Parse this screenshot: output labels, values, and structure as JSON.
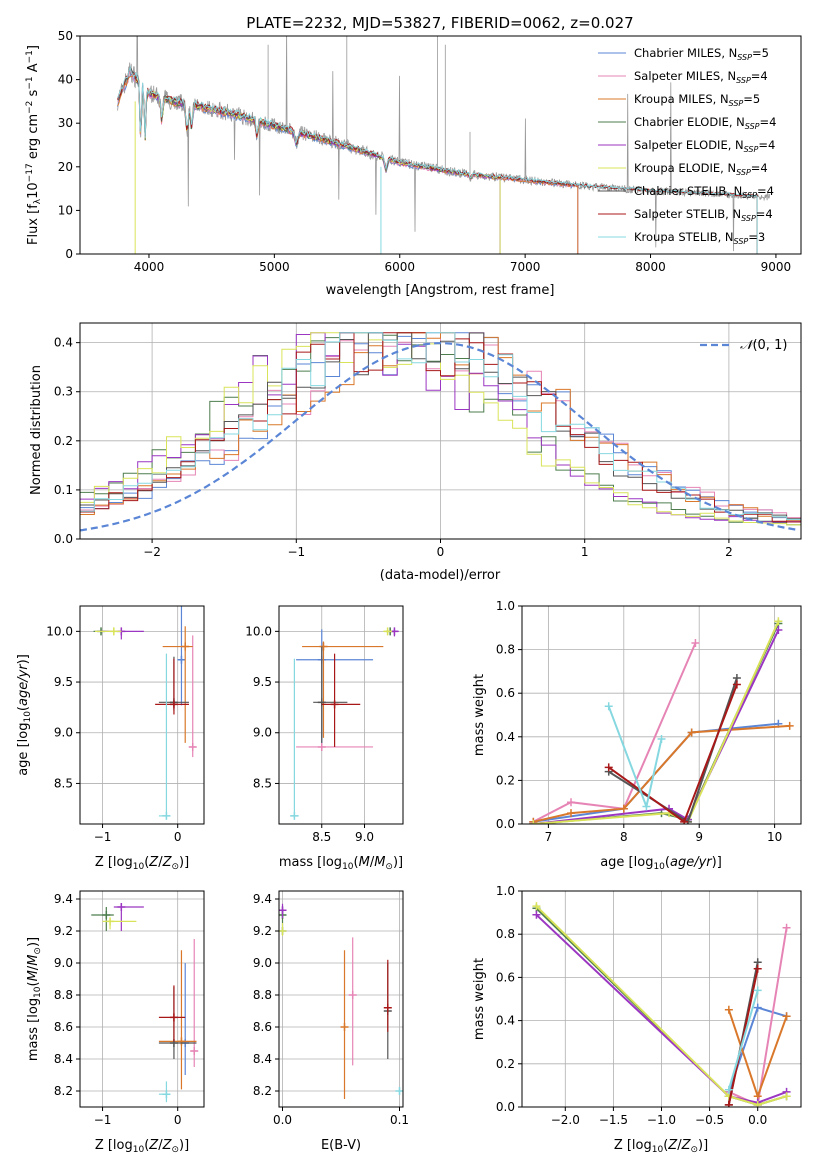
{
  "title": "PLATE=2232, MJD=53827, FIBERID=0062, z=0.027",
  "colors": {
    "Chabrier MILES": "#5b86d6",
    "Salpeter MILES": "#e685b5",
    "Kroupa MILES": "#d9782a",
    "Chabrier ELODIE": "#4d7d4d",
    "Salpeter ELODIE": "#9b36c2",
    "Kroupa ELODIE": "#d9e35a",
    "Chabrier STELIB": "#555555",
    "Salpeter STELIB": "#a81818",
    "Kroupa STELIB": "#86d8e0",
    "data": "#999999",
    "normal": "#5b86d6"
  },
  "legend": [
    {
      "name": "Chabrier MILES",
      "nssp": "5"
    },
    {
      "name": "Salpeter MILES",
      "nssp": "4"
    },
    {
      "name": "Kroupa MILES",
      "nssp": "5"
    },
    {
      "name": "Chabrier ELODIE",
      "nssp": "4"
    },
    {
      "name": "Salpeter ELODIE",
      "nssp": "4"
    },
    {
      "name": "Kroupa ELODIE",
      "nssp": "4"
    },
    {
      "name": "Chabrier STELIB",
      "nssp": "4"
    },
    {
      "name": "Salpeter STELIB",
      "nssp": "4"
    },
    {
      "name": "Kroupa STELIB",
      "nssp": "3"
    }
  ],
  "chart_data": [
    {
      "id": "spectrum",
      "type": "line",
      "xlabel": "wavelength [Angstrom, rest frame]",
      "ylabel": "Flux [fλ10⁻¹⁷ erg cm⁻² s⁻¹ A⁻¹]",
      "xlim": [
        3450,
        9200
      ],
      "ylim": [
        0,
        50
      ],
      "xticks": [
        4000,
        5000,
        6000,
        7000,
        8000,
        9000
      ],
      "yticks": [
        0,
        10,
        20,
        30,
        40,
        50
      ],
      "continuum": {
        "x": [
          3750,
          3850,
          4000,
          4200,
          4400,
          4700,
          5000,
          5500,
          6000,
          6500,
          7000,
          7500,
          8000,
          8500,
          9000
        ],
        "y": [
          35,
          42,
          37,
          35,
          34,
          32,
          29.5,
          25.5,
          21,
          18.5,
          17,
          15.5,
          14.5,
          13.8,
          13
        ]
      },
      "model_ranges": {
        "Chabrier MILES": [
          3750,
          7420
        ],
        "Salpeter MILES": [
          3750,
          7420
        ],
        "Kroupa MILES": [
          3750,
          7420
        ],
        "Chabrier ELODIE": [
          3890,
          6800
        ],
        "Salpeter ELODIE": [
          3890,
          6800
        ],
        "Kroupa ELODIE": [
          3890,
          6800
        ],
        "Chabrier STELIB": [
          3750,
          8850
        ],
        "Salpeter STELIB": [
          3750,
          8850
        ],
        "Kroupa STELIB": [
          3750,
          8850
        ]
      }
    },
    {
      "id": "residual-distribution",
      "type": "line",
      "xlabel": "(data-model)/error",
      "ylabel": "Normed distribution",
      "xlim": [
        -2.5,
        2.5
      ],
      "ylim": [
        0,
        0.44
      ],
      "xticks": [
        -2,
        -1,
        0,
        1,
        2
      ],
      "yticks": [
        0.0,
        0.1,
        0.2,
        0.3,
        0.4
      ],
      "normal_label": "𝒩(0, 1)",
      "normal_legend_text": "(0, 1)",
      "normal_legend_symbol": "𝒩"
    },
    {
      "id": "age-vs-Z",
      "type": "scatter",
      "xlabel": "Z [log10(Z/Z⊙)]",
      "ylabel": "age  [log10(age/yr)]",
      "xlim": [
        -1.3,
        0.35
      ],
      "ylim": [
        8.1,
        10.25
      ],
      "xticks": [
        -1,
        0
      ],
      "yticks": [
        8.5,
        9.0,
        9.5,
        10.0
      ],
      "points": [
        {
          "s": "Chabrier MILES",
          "x": 0.05,
          "y": 9.72,
          "xe": [
            0.05,
            0.05
          ],
          "ye": [
            0.45,
            0.55
          ]
        },
        {
          "s": "Salpeter MILES",
          "x": 0.2,
          "y": 8.86,
          "xe": [
            0.05,
            0.05
          ],
          "ye": [
            0.1,
            1.1
          ]
        },
        {
          "s": "Kroupa MILES",
          "x": 0.1,
          "y": 9.85,
          "xe": [
            0.3,
            0.1
          ],
          "ye": [
            0.95,
            0.2
          ]
        },
        {
          "s": "Chabrier ELODIE",
          "x": -1.02,
          "y": 10.0,
          "xe": [
            0.1,
            0.1
          ],
          "ye": [
            0.02,
            0.02
          ]
        },
        {
          "s": "Salpeter ELODIE",
          "x": -0.75,
          "y": 10.0,
          "xe": [
            0.3,
            0.3
          ],
          "ye": [
            0.08,
            0.02
          ]
        },
        {
          "s": "Kroupa ELODIE",
          "x": -0.85,
          "y": 10.0,
          "xe": [
            0.25,
            0.1
          ],
          "ye": [
            0.02,
            0.02
          ]
        },
        {
          "s": "Chabrier STELIB",
          "x": -0.05,
          "y": 9.3,
          "xe": [
            0.2,
            0.2
          ],
          "ye": [
            0.08,
            0.45
          ]
        },
        {
          "s": "Salpeter STELIB",
          "x": -0.05,
          "y": 9.28,
          "xe": [
            0.25,
            0.2
          ],
          "ye": [
            0.1,
            0.45
          ]
        },
        {
          "s": "Kroupa STELIB",
          "x": -0.15,
          "y": 8.18,
          "xe": [
            0.1,
            0.05
          ],
          "ye": [
            0.02,
            1.6
          ]
        }
      ]
    },
    {
      "id": "age-vs-mass",
      "type": "scatter",
      "xlabel": "mass [log10(M/M⊙)]",
      "ylabel": "",
      "xlim": [
        8.0,
        9.45
      ],
      "ylim": [
        8.1,
        10.25
      ],
      "xticks": [
        8.5,
        9.0
      ],
      "yticks": [
        8.5,
        9.0,
        9.5,
        10.0
      ],
      "points": [
        {
          "s": "Chabrier MILES",
          "x": 8.5,
          "y": 9.72,
          "xe": [
            0.3,
            0.6
          ],
          "ye": [
            0.9,
            0.3
          ]
        },
        {
          "s": "Salpeter MILES",
          "x": 8.5,
          "y": 8.86,
          "xe": [
            0.3,
            0.6
          ],
          "ye": [
            0.02,
            0.02
          ]
        },
        {
          "s": "Kroupa MILES",
          "x": 8.52,
          "y": 9.85,
          "xe": [
            0.25,
            0.7
          ],
          "ye": [
            0.9,
            0.05
          ]
        },
        {
          "s": "Chabrier ELODIE",
          "x": 9.3,
          "y": 10.0,
          "xe": [
            0.05,
            0.05
          ],
          "ye": [
            0.02,
            0.02
          ]
        },
        {
          "s": "Salpeter ELODIE",
          "x": 9.35,
          "y": 10.0,
          "xe": [
            0.08,
            0.05
          ],
          "ye": [
            0.05,
            0.02
          ]
        },
        {
          "s": "Kroupa ELODIE",
          "x": 9.27,
          "y": 10.0,
          "xe": [
            0.05,
            0.05
          ],
          "ye": [
            0.02,
            0.02
          ]
        },
        {
          "s": "Chabrier STELIB",
          "x": 8.5,
          "y": 9.3,
          "xe": [
            0.1,
            0.3
          ],
          "ye": [
            0.4,
            0.55
          ]
        },
        {
          "s": "Salpeter STELIB",
          "x": 8.65,
          "y": 9.28,
          "xe": [
            0.15,
            0.3
          ],
          "ye": [
            0.42,
            0.5
          ]
        },
        {
          "s": "Kroupa STELIB",
          "x": 8.18,
          "y": 8.18,
          "xe": [
            0.05,
            0.05
          ],
          "ye": [
            0.02,
            1.55
          ]
        }
      ]
    },
    {
      "id": "massweight-vs-age",
      "type": "line",
      "xlabel": "age  [log10(age/yr)]",
      "ylabel": "mass weight",
      "xlim": [
        6.65,
        10.35
      ],
      "ylim": [
        0,
        1.0
      ],
      "xticks": [
        7,
        8,
        9,
        10
      ],
      "yticks": [
        0.0,
        0.2,
        0.4,
        0.6,
        0.8,
        1.0
      ],
      "series": [
        {
          "s": "Chabrier MILES",
          "x": [
            6.8,
            8.0,
            8.9,
            10.05
          ],
          "y": [
            0.01,
            0.07,
            0.42,
            0.46
          ]
        },
        {
          "s": "Salpeter MILES",
          "x": [
            6.8,
            7.3,
            8.0,
            8.95
          ],
          "y": [
            0.01,
            0.1,
            0.07,
            0.83
          ]
        },
        {
          "s": "Kroupa MILES",
          "x": [
            6.8,
            7.3,
            8.0,
            8.9,
            10.2
          ],
          "y": [
            0.01,
            0.05,
            0.07,
            0.42,
            0.45
          ]
        },
        {
          "s": "Chabrier ELODIE",
          "x": [
            6.8,
            8.5,
            8.85,
            10.05
          ],
          "y": [
            0.0,
            0.05,
            0.02,
            0.92
          ]
        },
        {
          "s": "Salpeter ELODIE",
          "x": [
            6.8,
            8.6,
            8.85,
            10.05
          ],
          "y": [
            0.0,
            0.07,
            0.02,
            0.89
          ]
        },
        {
          "s": "Kroupa ELODIE",
          "x": [
            6.8,
            8.6,
            8.85,
            10.05
          ],
          "y": [
            0.0,
            0.05,
            0.01,
            0.93
          ]
        },
        {
          "s": "Chabrier STELIB",
          "x": [
            7.8,
            8.85,
            9.5
          ],
          "y": [
            0.24,
            0.01,
            0.67
          ]
        },
        {
          "s": "Salpeter STELIB",
          "x": [
            7.8,
            8.8,
            9.5
          ],
          "y": [
            0.26,
            0.01,
            0.64
          ]
        },
        {
          "s": "Kroupa STELIB",
          "x": [
            7.8,
            8.3,
            8.5
          ],
          "y": [
            0.54,
            0.08,
            0.39
          ]
        }
      ]
    },
    {
      "id": "mass-vs-Z",
      "type": "scatter",
      "xlabel": "Z [log10(Z/Z⊙)]",
      "ylabel": "mass [log10(M/M⊙)]",
      "xlim": [
        -1.3,
        0.35
      ],
      "ylim": [
        8.1,
        9.45
      ],
      "xticks": [
        -1,
        0
      ],
      "yticks": [
        8.2,
        8.4,
        8.6,
        8.8,
        9.0,
        9.2,
        9.4
      ],
      "points": [
        {
          "s": "Chabrier MILES",
          "x": 0.1,
          "y": 8.5,
          "xe": [
            0.05,
            0.05
          ],
          "ye": [
            0.2,
            0.5
          ]
        },
        {
          "s": "Salpeter MILES",
          "x": 0.22,
          "y": 8.45,
          "xe": [
            0.05,
            0.05
          ],
          "ye": [
            0.1,
            0.7
          ]
        },
        {
          "s": "Kroupa MILES",
          "x": 0.05,
          "y": 8.51,
          "xe": [
            0.3,
            0.2
          ],
          "ye": [
            0.3,
            0.57
          ]
        },
        {
          "s": "Chabrier ELODIE",
          "x": -0.95,
          "y": 9.3,
          "xe": [
            0.2,
            0.1
          ],
          "ye": [
            0.1,
            0.05
          ]
        },
        {
          "s": "Salpeter ELODIE",
          "x": -0.75,
          "y": 9.35,
          "xe": [
            0.1,
            0.3
          ],
          "ye": [
            0.15,
            0.02
          ]
        },
        {
          "s": "Kroupa ELODIE",
          "x": -0.9,
          "y": 9.26,
          "xe": [
            0.1,
            0.35
          ],
          "ye": [
            0.05,
            0.02
          ]
        },
        {
          "s": "Chabrier STELIB",
          "x": -0.05,
          "y": 8.5,
          "xe": [
            0.2,
            0.3
          ],
          "ye": [
            0.1,
            0.35
          ]
        },
        {
          "s": "Salpeter STELIB",
          "x": -0.05,
          "y": 8.66,
          "xe": [
            0.2,
            0.15
          ],
          "ye": [
            0.15,
            0.2
          ]
        },
        {
          "s": "Kroupa STELIB",
          "x": -0.15,
          "y": 8.18,
          "xe": [
            0.1,
            0.05
          ],
          "ye": [
            0.05,
            0.08
          ]
        }
      ]
    },
    {
      "id": "mass-vs-ebv",
      "type": "scatter",
      "xlabel": "E(B-V)",
      "ylabel": "",
      "xlim": [
        -0.003,
        0.103
      ],
      "ylim": [
        8.1,
        9.45
      ],
      "xticks": [
        0.0,
        0.1
      ],
      "yticks": [
        8.2,
        8.4,
        8.6,
        8.8,
        9.0,
        9.2,
        9.4
      ],
      "points": [
        {
          "s": "Chabrier MILES",
          "x": 0.0,
          "y": 9.2,
          "xe": [
            0,
            0
          ],
          "ye": [
            0.02,
            0.05
          ]
        },
        {
          "s": "Salpeter MILES",
          "x": 0.06,
          "y": 8.8,
          "xe": [
            0,
            0
          ],
          "ye": [
            0.44,
            0.36
          ]
        },
        {
          "s": "Kroupa MILES",
          "x": 0.053,
          "y": 8.6,
          "xe": [
            0,
            0
          ],
          "ye": [
            0.45,
            0.48
          ]
        },
        {
          "s": "Chabrier ELODIE",
          "x": 0.0,
          "y": 9.3,
          "xe": [
            0,
            0
          ],
          "ye": [
            0.05,
            0.05
          ]
        },
        {
          "s": "Salpeter ELODIE",
          "x": 0.0,
          "y": 9.33,
          "xe": [
            0,
            0
          ],
          "ye": [
            0.05,
            0.04
          ]
        },
        {
          "s": "Kroupa ELODIE",
          "x": 0.0,
          "y": 9.2,
          "xe": [
            0,
            0
          ],
          "ye": [
            0.03,
            0.05
          ]
        },
        {
          "s": "Chabrier STELIB",
          "x": 0.09,
          "y": 8.7,
          "xe": [
            0,
            0
          ],
          "ye": [
            0.3,
            0.3
          ]
        },
        {
          "s": "Salpeter STELIB",
          "x": 0.09,
          "y": 8.72,
          "xe": [
            0,
            0
          ],
          "ye": [
            0.15,
            0.3
          ]
        },
        {
          "s": "Kroupa STELIB",
          "x": 0.1,
          "y": 8.2,
          "xe": [
            0,
            0
          ],
          "ye": [
            0.02,
            0.02
          ]
        }
      ]
    },
    {
      "id": "massweight-vs-Z",
      "type": "line",
      "xlabel": "Z [log10(Z/Z⊙)]",
      "ylabel": "mass weight",
      "xlim": [
        -2.45,
        0.45
      ],
      "ylim": [
        0,
        1.0
      ],
      "xticks": [
        -2.0,
        -1.5,
        -1.0,
        -0.5,
        0.0
      ],
      "yticks": [
        0.0,
        0.2,
        0.4,
        0.6,
        0.8,
        1.0
      ],
      "series": [
        {
          "s": "Chabrier MILES",
          "x": [
            -0.3,
            0.0,
            0.3
          ],
          "y": [
            0.07,
            0.46,
            0.42
          ]
        },
        {
          "s": "Salpeter MILES",
          "x": [
            -0.3,
            0.0,
            0.3
          ],
          "y": [
            0.07,
            0.01,
            0.83
          ]
        },
        {
          "s": "Kroupa MILES",
          "x": [
            -0.3,
            0.0,
            0.3
          ],
          "y": [
            0.45,
            0.05,
            0.42
          ]
        },
        {
          "s": "Chabrier ELODIE",
          "x": [
            -2.3,
            -0.3,
            0.0,
            0.3
          ],
          "y": [
            0.92,
            0.05,
            0.01,
            0.05
          ]
        },
        {
          "s": "Salpeter ELODIE",
          "x": [
            -2.3,
            -0.3,
            0.0,
            0.3
          ],
          "y": [
            0.89,
            0.05,
            0.02,
            0.07
          ]
        },
        {
          "s": "Kroupa ELODIE",
          "x": [
            -2.3,
            -0.3,
            0.0,
            0.3
          ],
          "y": [
            0.93,
            0.05,
            0.01,
            0.05
          ]
        },
        {
          "s": "Chabrier STELIB",
          "x": [
            -0.3,
            0.0
          ],
          "y": [
            0.01,
            0.67
          ]
        },
        {
          "s": "Salpeter STELIB",
          "x": [
            -0.3,
            0.0
          ],
          "y": [
            0.01,
            0.64
          ]
        },
        {
          "s": "Kroupa STELIB",
          "x": [
            -0.3,
            0.0
          ],
          "y": [
            0.08,
            0.54
          ]
        }
      ]
    }
  ]
}
